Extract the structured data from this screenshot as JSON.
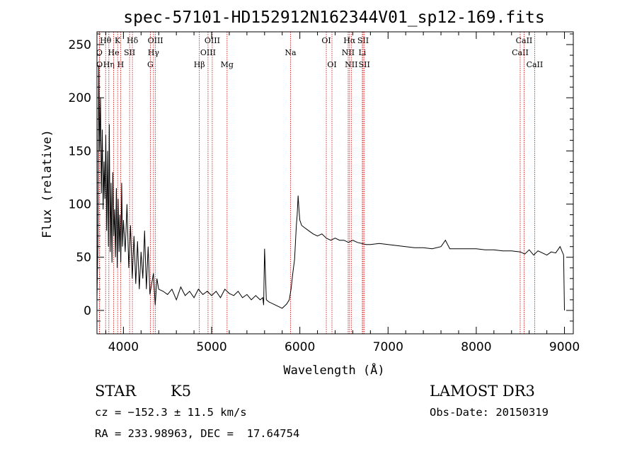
{
  "chart_data": {
    "type": "line",
    "title": "spec-57101-HD152912N162344V01_sp12-169.fits",
    "xlabel": "Wavelength (Å)",
    "ylabel": "Flux (relative)",
    "xlim": [
      3700,
      9100
    ],
    "ylim": [
      -22,
      262
    ],
    "xticks": [
      4000,
      5000,
      6000,
      7000,
      8000,
      9000
    ],
    "yticks": [
      0,
      50,
      100,
      150,
      200,
      250
    ],
    "grid": false,
    "spectral_lines": [
      {
        "label": "O",
        "wavelength": 3727,
        "row": 1
      },
      {
        "label": "O",
        "wavelength": 3729,
        "row": 2
      },
      {
        "label": "Hθ",
        "wavelength": 3798,
        "row": 0
      },
      {
        "label": "Hη",
        "wavelength": 3835,
        "row": 2
      },
      {
        "label": "He",
        "wavelength": 3889,
        "row": 1
      },
      {
        "label": "K",
        "wavelength": 3934,
        "row": 0
      },
      {
        "label": "H",
        "wavelength": 3968,
        "row": 2
      },
      {
        "label": "SII",
        "wavelength": 4070,
        "row": 1
      },
      {
        "label": "Hδ",
        "wavelength": 4102,
        "row": 0
      },
      {
        "label": "G",
        "wavelength": 4305,
        "row": 2
      },
      {
        "label": "Hγ",
        "wavelength": 4341,
        "row": 1
      },
      {
        "label": "OIII",
        "wavelength": 4363,
        "row": 0
      },
      {
        "label": "Hβ",
        "wavelength": 4861,
        "row": 2
      },
      {
        "label": "OIII",
        "wavelength": 4959,
        "row": 1
      },
      {
        "label": "OIII",
        "wavelength": 5007,
        "row": 0
      },
      {
        "label": "Mg",
        "wavelength": 5175,
        "row": 2
      },
      {
        "label": "Na",
        "wavelength": 5894,
        "row": 1
      },
      {
        "label": "OI",
        "wavelength": 6300,
        "row": 0
      },
      {
        "label": "OI",
        "wavelength": 6364,
        "row": 2
      },
      {
        "label": "NII",
        "wavelength": 6548,
        "row": 1
      },
      {
        "label": "Hα",
        "wavelength": 6563,
        "row": 0
      },
      {
        "label": "NII",
        "wavelength": 6583,
        "row": 2
      },
      {
        "label": "Li",
        "wavelength": 6708,
        "row": 1
      },
      {
        "label": "SII",
        "wavelength": 6717,
        "row": 0
      },
      {
        "label": "SII",
        "wavelength": 6731,
        "row": 2
      },
      {
        "label": "CaII",
        "wavelength": 8498,
        "row": 1
      },
      {
        "label": "CaII",
        "wavelength": 8542,
        "row": 0
      },
      {
        "label": "CaII",
        "wavelength": 8662,
        "row": 2
      }
    ],
    "series": [
      {
        "x": [
          3700,
          3710,
          3720,
          3730,
          3740,
          3750,
          3760,
          3770,
          3780,
          3790,
          3800,
          3810,
          3820,
          3830,
          3840,
          3850,
          3860,
          3870,
          3880,
          3890,
          3900,
          3910,
          3920,
          3930,
          3940,
          3950,
          3960,
          3970,
          3980,
          3990,
          4000,
          4020,
          4040,
          4060,
          4080,
          4100,
          4120,
          4140,
          4160,
          4180,
          4200,
          4220,
          4240,
          4260,
          4280,
          4300,
          4320,
          4340,
          4360,
          4380,
          4400,
          4450,
          4500,
          4550,
          4600,
          4650,
          4700,
          4750,
          4800,
          4850,
          4900,
          4950,
          5000,
          5050,
          5100,
          5150,
          5200,
          5250,
          5300,
          5350,
          5400,
          5450,
          5500,
          5550,
          5580,
          5590,
          5600,
          5620,
          5650,
          5700,
          5750,
          5800,
          5850,
          5880,
          5900,
          5920,
          5940,
          5960,
          5970,
          5980,
          5990,
          6000,
          6020,
          6050,
          6100,
          6150,
          6200,
          6250,
          6300,
          6350,
          6400,
          6450,
          6500,
          6550,
          6600,
          6650,
          6700,
          6750,
          6800,
          6900,
          7000,
          7100,
          7200,
          7300,
          7400,
          7500,
          7600,
          7650,
          7700,
          7800,
          7900,
          8000,
          8100,
          8200,
          8300,
          8400,
          8500,
          8550,
          8600,
          8650,
          8700,
          8750,
          8800,
          8850,
          8900,
          8950,
          8970,
          8990,
          9000
        ],
        "values": [
          10,
          60,
          230,
          150,
          200,
          110,
          170,
          95,
          140,
          105,
          165,
          75,
          150,
          60,
          175,
          55,
          120,
          45,
          130,
          70,
          95,
          50,
          115,
          40,
          105,
          55,
          90,
          45,
          120,
          60,
          85,
          55,
          100,
          40,
          80,
          30,
          70,
          25,
          65,
          20,
          55,
          30,
          75,
          20,
          60,
          15,
          25,
          35,
          5,
          30,
          20,
          18,
          15,
          20,
          10,
          22,
          14,
          18,
          12,
          20,
          15,
          18,
          14,
          18,
          12,
          20,
          16,
          14,
          18,
          12,
          15,
          10,
          14,
          10,
          12,
          5,
          58,
          10,
          8,
          6,
          4,
          2,
          6,
          10,
          20,
          35,
          48,
          80,
          90,
          108,
          95,
          85,
          80,
          78,
          75,
          72,
          70,
          72,
          68,
          66,
          68,
          66,
          66,
          64,
          66,
          64,
          63,
          62,
          62,
          63,
          62,
          61,
          60,
          59,
          59,
          58,
          60,
          66,
          58,
          58,
          58,
          58,
          57,
          57,
          56,
          56,
          55,
          53,
          57,
          52,
          56,
          54,
          52,
          55,
          54,
          60,
          56,
          52,
          0
        ]
      }
    ]
  },
  "info": {
    "object_type": "STAR",
    "spectral_class": "K5",
    "survey": "LAMOST DR3",
    "velocity_line": "cz = −152.3 ± 11.5 km/s",
    "obs_date_line": "Obs-Date: 20150319",
    "coords_line": "RA = 233.98963, DEC =  17.64754"
  }
}
